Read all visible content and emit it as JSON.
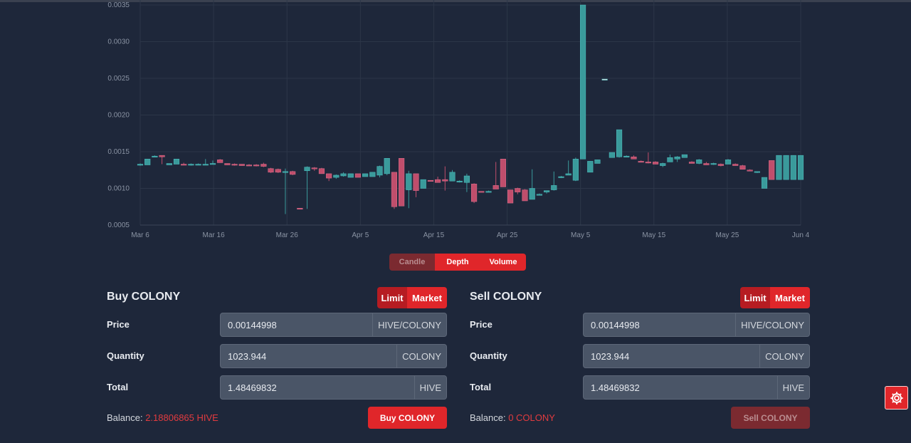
{
  "chart_data": {
    "type": "candlestick",
    "y_ticks": [
      "0.0035",
      "0.0030",
      "0.0025",
      "0.0020",
      "0.0015",
      "0.0010",
      "0.0005"
    ],
    "x_ticks": [
      "Mar 6",
      "Mar 16",
      "Mar 26",
      "Apr 5",
      "Apr 15",
      "Apr 25",
      "May 5",
      "May 15",
      "May 25",
      "Jun 4"
    ],
    "ylim": [
      0.0005,
      0.0035
    ],
    "grid": true,
    "candles": [
      {
        "date": "Mar 6",
        "open": 0.00132,
        "high": 0.00134,
        "low": 0.00131,
        "close": 0.00133
      },
      {
        "date": "Mar 7",
        "open": 0.00132,
        "high": 0.0014,
        "low": 0.00132,
        "close": 0.0014
      },
      {
        "date": "Mar 8",
        "open": 0.00144,
        "high": 0.00145,
        "low": 0.00143,
        "close": 0.00144
      },
      {
        "date": "Mar 9",
        "open": 0.00145,
        "high": 0.00145,
        "low": 0.00133,
        "close": 0.00143
      },
      {
        "date": "Mar 10",
        "open": 0.00132,
        "high": 0.00134,
        "low": 0.00132,
        "close": 0.00134
      },
      {
        "date": "Mar 11",
        "open": 0.00133,
        "high": 0.0014,
        "low": 0.00133,
        "close": 0.0014
      },
      {
        "date": "Mar 12",
        "open": 0.00133,
        "high": 0.00135,
        "low": 0.00132,
        "close": 0.00132
      },
      {
        "date": "Mar 13",
        "open": 0.00132,
        "high": 0.00134,
        "low": 0.00131,
        "close": 0.00133
      },
      {
        "date": "Mar 14",
        "open": 0.00132,
        "high": 0.00134,
        "low": 0.00132,
        "close": 0.00133
      },
      {
        "date": "Mar 15",
        "open": 0.00133,
        "high": 0.0014,
        "low": 0.00132,
        "close": 0.00133
      },
      {
        "date": "Mar 16",
        "open": 0.00134,
        "high": 0.00138,
        "low": 0.00133,
        "close": 0.00134
      },
      {
        "date": "Mar 17",
        "open": 0.00139,
        "high": 0.0014,
        "low": 0.00135,
        "close": 0.00135
      },
      {
        "date": "Mar 18",
        "open": 0.00134,
        "high": 0.00134,
        "low": 0.00132,
        "close": 0.00132
      },
      {
        "date": "Mar 19",
        "open": 0.00133,
        "high": 0.00134,
        "low": 0.00131,
        "close": 0.00132
      },
      {
        "date": "Mar 20",
        "open": 0.00133,
        "high": 0.00133,
        "low": 0.00131,
        "close": 0.00131
      },
      {
        "date": "Mar 21",
        "open": 0.00132,
        "high": 0.00133,
        "low": 0.00131,
        "close": 0.00131
      },
      {
        "date": "Mar 22",
        "open": 0.00132,
        "high": 0.00133,
        "low": 0.0013,
        "close": 0.00131
      },
      {
        "date": "Mar 23",
        "open": 0.00133,
        "high": 0.00135,
        "low": 0.00129,
        "close": 0.0013
      },
      {
        "date": "Mar 24",
        "open": 0.00127,
        "high": 0.00128,
        "low": 0.00121,
        "close": 0.00122
      },
      {
        "date": "Mar 25",
        "open": 0.00126,
        "high": 0.00127,
        "low": 0.00121,
        "close": 0.00122
      },
      {
        "date": "Mar 26",
        "open": 0.00122,
        "high": 0.00127,
        "low": 0.00065,
        "close": 0.00123
      },
      {
        "date": "Mar 27",
        "open": 0.00123,
        "high": 0.00124,
        "low": 0.00118,
        "close": 0.00119
      },
      {
        "date": "Mar 28",
        "open": 0.00073,
        "high": 0.00073,
        "low": 0.00072,
        "close": 0.00072
      },
      {
        "date": "Mar 29",
        "open": 0.00124,
        "high": 0.0013,
        "low": 0.00072,
        "close": 0.00129
      },
      {
        "date": "Mar 30",
        "open": 0.00128,
        "high": 0.00129,
        "low": 0.00124,
        "close": 0.00127
      },
      {
        "date": "Mar 31",
        "open": 0.00127,
        "high": 0.00128,
        "low": 0.0012,
        "close": 0.0012
      },
      {
        "date": "Apr 1",
        "open": 0.0012,
        "high": 0.0012,
        "low": 0.0011,
        "close": 0.00114
      },
      {
        "date": "Apr 2",
        "open": 0.00115,
        "high": 0.00119,
        "low": 0.00113,
        "close": 0.00118
      },
      {
        "date": "Apr 3",
        "open": 0.00117,
        "high": 0.00122,
        "low": 0.00116,
        "close": 0.0012
      },
      {
        "date": "Apr 4",
        "open": 0.00115,
        "high": 0.0012,
        "low": 0.00115,
        "close": 0.0012
      },
      {
        "date": "Apr 5",
        "open": 0.0012,
        "high": 0.0012,
        "low": 0.00115,
        "close": 0.00115
      },
      {
        "date": "Apr 6",
        "open": 0.00116,
        "high": 0.0012,
        "low": 0.00116,
        "close": 0.0012
      },
      {
        "date": "Apr 7",
        "open": 0.00116,
        "high": 0.00122,
        "low": 0.00116,
        "close": 0.00122
      },
      {
        "date": "Apr 8",
        "open": 0.00118,
        "high": 0.00131,
        "low": 0.00115,
        "close": 0.0013
      },
      {
        "date": "Apr 9",
        "open": 0.0012,
        "high": 0.00141,
        "low": 0.00118,
        "close": 0.00141
      },
      {
        "date": "Apr 10",
        "open": 0.00122,
        "high": 0.00122,
        "low": 0.00072,
        "close": 0.00075
      },
      {
        "date": "Apr 11",
        "open": 0.00141,
        "high": 0.00141,
        "low": 0.00076,
        "close": 0.00076
      },
      {
        "date": "Apr 12",
        "open": 0.00098,
        "high": 0.00124,
        "low": 0.00073,
        "close": 0.0012
      },
      {
        "date": "Apr 13",
        "open": 0.0012,
        "high": 0.0012,
        "low": 0.00088,
        "close": 0.00097
      },
      {
        "date": "Apr 14",
        "open": 0.001,
        "high": 0.00112,
        "low": 0.001,
        "close": 0.00112
      },
      {
        "date": "Apr 15",
        "open": 0.00111,
        "high": 0.00111,
        "low": 0.0011,
        "close": 0.0011
      },
      {
        "date": "Apr 16",
        "open": 0.00112,
        "high": 0.00116,
        "low": 0.00108,
        "close": 0.00108
      },
      {
        "date": "Apr 17",
        "open": 0.00112,
        "high": 0.0013,
        "low": 0.00097,
        "close": 0.0011
      },
      {
        "date": "Apr 18",
        "open": 0.0011,
        "high": 0.00125,
        "low": 0.0011,
        "close": 0.00122
      },
      {
        "date": "Apr 19",
        "open": 0.0011,
        "high": 0.00111,
        "low": 0.00108,
        "close": 0.0011
      },
      {
        "date": "Apr 20",
        "open": 0.00108,
        "high": 0.0012,
        "low": 0.00095,
        "close": 0.00117
      },
      {
        "date": "Apr 21",
        "open": 0.00106,
        "high": 0.00107,
        "low": 0.0008,
        "close": 0.00082
      },
      {
        "date": "Apr 22",
        "open": 0.00096,
        "high": 0.00096,
        "low": 0.00095,
        "close": 0.00095
      },
      {
        "date": "Apr 23",
        "open": 0.00096,
        "high": 0.00097,
        "low": 0.00096,
        "close": 0.00096
      },
      {
        "date": "Apr 24",
        "open": 0.00104,
        "high": 0.00136,
        "low": 0.00099,
        "close": 0.00099
      },
      {
        "date": "Apr 25",
        "open": 0.0014,
        "high": 0.0014,
        "low": 0.00102,
        "close": 0.00102
      },
      {
        "date": "Apr 26",
        "open": 0.00098,
        "high": 0.00098,
        "low": 0.0008,
        "close": 0.0008
      },
      {
        "date": "Apr 27",
        "open": 0.001,
        "high": 0.00101,
        "low": 0.00092,
        "close": 0.00095
      },
      {
        "date": "Apr 28",
        "open": 0.00098,
        "high": 0.00099,
        "low": 0.00083,
        "close": 0.00083
      },
      {
        "date": "Apr 29",
        "open": 0.00085,
        "high": 0.00126,
        "low": 0.00085,
        "close": 0.001
      },
      {
        "date": "Apr 30",
        "open": 0.00092,
        "high": 0.00093,
        "low": 0.00091,
        "close": 0.00092
      },
      {
        "date": "May 1",
        "open": 0.00095,
        "high": 0.00097,
        "low": 0.00093,
        "close": 0.00097
      },
      {
        "date": "May 2",
        "open": 0.00098,
        "high": 0.00123,
        "low": 0.00097,
        "close": 0.00104
      },
      {
        "date": "May 3",
        "open": 0.00115,
        "high": 0.00117,
        "low": 0.00114,
        "close": 0.00116
      },
      {
        "date": "May 4",
        "open": 0.00118,
        "high": 0.00138,
        "low": 0.00118,
        "close": 0.0012
      },
      {
        "date": "May 5",
        "open": 0.00111,
        "high": 0.00142,
        "low": 0.0011,
        "close": 0.0014
      },
      {
        "date": "May 6",
        "open": 0.0014,
        "high": 0.0035,
        "low": 0.0014,
        "close": 0.0035
      },
      {
        "date": "May 7",
        "open": 0.00122,
        "high": 0.00137,
        "low": 0.00122,
        "close": 0.00137
      },
      {
        "date": "May 8",
        "open": 0.00134,
        "high": 0.00139,
        "low": 0.00134,
        "close": 0.00139
      },
      {
        "date": "May 9",
        "open": 0.00249,
        "high": 0.00249,
        "low": 0.00249,
        "close": 0.00249
      },
      {
        "date": "May 10",
        "open": 0.00142,
        "high": 0.00149,
        "low": 0.00142,
        "close": 0.00149
      },
      {
        "date": "May 11",
        "open": 0.00143,
        "high": 0.0018,
        "low": 0.00142,
        "close": 0.0018
      },
      {
        "date": "May 12",
        "open": 0.00144,
        "high": 0.00145,
        "low": 0.00143,
        "close": 0.00144
      },
      {
        "date": "May 13",
        "open": 0.00143,
        "high": 0.00145,
        "low": 0.0014,
        "close": 0.0014
      },
      {
        "date": "May 14",
        "open": 0.00137,
        "high": 0.00138,
        "low": 0.00136,
        "close": 0.00136
      },
      {
        "date": "May 15",
        "open": 0.00136,
        "high": 0.00149,
        "low": 0.00134,
        "close": 0.00135
      },
      {
        "date": "May 16",
        "open": 0.00136,
        "high": 0.00137,
        "low": 0.00133,
        "close": 0.00133
      },
      {
        "date": "May 17",
        "open": 0.00131,
        "high": 0.00135,
        "low": 0.00129,
        "close": 0.00134
      },
      {
        "date": "May 18",
        "open": 0.00136,
        "high": 0.00146,
        "low": 0.00136,
        "close": 0.00142
      },
      {
        "date": "May 19",
        "open": 0.0014,
        "high": 0.00144,
        "low": 0.00136,
        "close": 0.00143
      },
      {
        "date": "May 20",
        "open": 0.00142,
        "high": 0.00146,
        "low": 0.00142,
        "close": 0.00146
      },
      {
        "date": "May 21",
        "open": 0.00136,
        "high": 0.00137,
        "low": 0.00134,
        "close": 0.00134
      },
      {
        "date": "May 22",
        "open": 0.00134,
        "high": 0.0014,
        "low": 0.00133,
        "close": 0.00139
      },
      {
        "date": "May 23",
        "open": 0.00134,
        "high": 0.00136,
        "low": 0.00132,
        "close": 0.00132
      },
      {
        "date": "May 24",
        "open": 0.00133,
        "high": 0.00135,
        "low": 0.00132,
        "close": 0.00134
      },
      {
        "date": "May 25",
        "open": 0.00133,
        "high": 0.00134,
        "low": 0.0013,
        "close": 0.00131
      },
      {
        "date": "May 26",
        "open": 0.00133,
        "high": 0.0014,
        "low": 0.00133,
        "close": 0.00139
      },
      {
        "date": "May 27",
        "open": 0.00133,
        "high": 0.00134,
        "low": 0.00131,
        "close": 0.00131
      },
      {
        "date": "May 28",
        "open": 0.00131,
        "high": 0.00132,
        "low": 0.00126,
        "close": 0.00126
      },
      {
        "date": "May 29",
        "open": 0.00125,
        "high": 0.00126,
        "low": 0.00124,
        "close": 0.00124
      },
      {
        "date": "May 30",
        "open": 0.00122,
        "high": 0.00123,
        "low": 0.00121,
        "close": 0.00123
      },
      {
        "date": "May 31",
        "open": 0.001,
        "high": 0.00115,
        "low": 0.001,
        "close": 0.00115
      },
      {
        "date": "Jun 1",
        "open": 0.00138,
        "high": 0.00138,
        "low": 0.00112,
        "close": 0.00112
      },
      {
        "date": "Jun 2",
        "open": 0.00112,
        "high": 0.00145,
        "low": 0.00112,
        "close": 0.00145
      },
      {
        "date": "Jun 3",
        "open": 0.00112,
        "high": 0.00145,
        "low": 0.00112,
        "close": 0.00145
      },
      {
        "date": "Jun 4",
        "open": 0.00112,
        "high": 0.00145,
        "low": 0.00112,
        "close": 0.00145
      },
      {
        "date": "Jun 5",
        "open": 0.00112,
        "high": 0.00145,
        "low": 0.00112,
        "close": 0.00145
      }
    ],
    "colors": {
      "up": "#3a9a9b",
      "down": "#c04e6c",
      "grid": "#2c3648"
    }
  },
  "view_toggle": {
    "candle": "Candle",
    "depth": "Depth",
    "volume": "Volume",
    "active": "candle"
  },
  "buy": {
    "title": "Buy COLONY",
    "limit": "Limit",
    "market": "Market",
    "price_label": "Price",
    "price_value": "0.00144998",
    "price_unit": "HIVE/COLONY",
    "quantity_label": "Quantity",
    "quantity_value": "1023.944",
    "quantity_unit": "COLONY",
    "total_label": "Total",
    "total_value": "1.48469832",
    "total_unit": "HIVE",
    "balance_label": "Balance: ",
    "balance_value": "2.18806865 HIVE",
    "action": "Buy COLONY"
  },
  "sell": {
    "title": "Sell COLONY",
    "limit": "Limit",
    "market": "Market",
    "price_label": "Price",
    "price_value": "0.00144998",
    "price_unit": "HIVE/COLONY",
    "quantity_label": "Quantity",
    "quantity_value": "1023.944",
    "quantity_unit": "COLONY",
    "total_label": "Total",
    "total_value": "1.48469832",
    "total_unit": "HIVE",
    "balance_label": "Balance: ",
    "balance_value": "0 COLONY",
    "action": "Sell COLONY"
  },
  "colors": {
    "accent": "#e0262a",
    "accent_dark": "#b61c22",
    "background": "#1e273a"
  },
  "settings_icon": "gear-icon"
}
